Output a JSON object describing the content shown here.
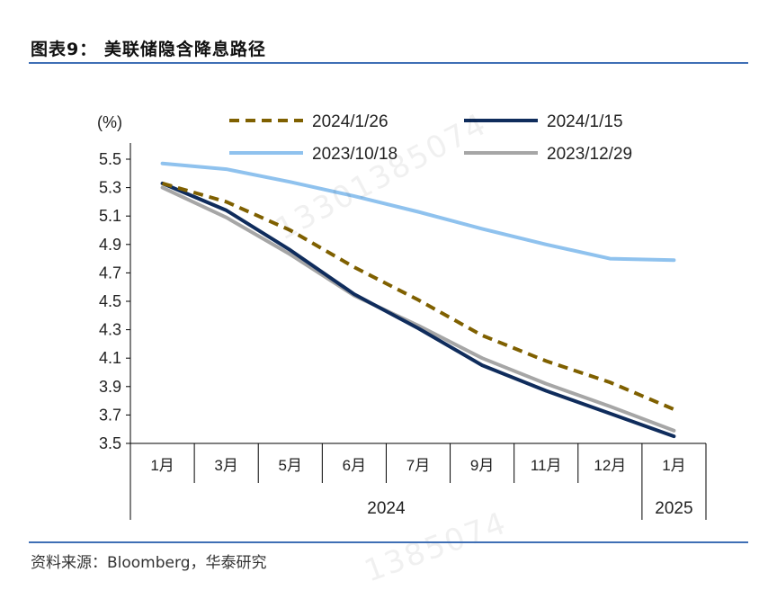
{
  "figure": {
    "title": "图表9：  美联储隐含降息路径",
    "source": "资料来源：Bloomberg，华泰研究",
    "watermark": "13301385074",
    "watermark_bottom": "1385074"
  },
  "chart_data": {
    "type": "line",
    "ylabel": "(%)",
    "ylim": [
      3.5,
      5.5
    ],
    "yticks": [
      "5.5",
      "5.3",
      "5.1",
      "4.9",
      "4.7",
      "4.5",
      "4.3",
      "4.1",
      "3.9",
      "3.7",
      "3.5"
    ],
    "categories": [
      "1月",
      "3月",
      "5月",
      "6月",
      "7月",
      "9月",
      "11月",
      "12月",
      "1月"
    ],
    "year_groups": [
      {
        "label": "2024",
        "span": 8
      },
      {
        "label": "2025",
        "span": 1
      }
    ],
    "legend_position": "top",
    "series": [
      {
        "name": "2024/1/26",
        "color": "#7f6000",
        "style": "dashed",
        "values": [
          5.33,
          5.2,
          5.0,
          4.74,
          4.51,
          4.26,
          4.08,
          3.93,
          3.74
        ]
      },
      {
        "name": "2024/1/15",
        "color": "#0f2c5c",
        "style": "solid",
        "values": [
          5.33,
          5.14,
          4.86,
          4.55,
          4.31,
          4.05,
          3.87,
          3.71,
          3.55
        ]
      },
      {
        "name": "2023/10/18",
        "color": "#8fc2ee",
        "style": "solid",
        "values": [
          5.47,
          5.43,
          5.34,
          5.24,
          5.13,
          5.01,
          4.9,
          4.8,
          4.79
        ]
      },
      {
        "name": "2023/12/29",
        "color": "#a6a6a6",
        "style": "solid",
        "values": [
          5.3,
          5.09,
          4.83,
          4.54,
          4.33,
          4.1,
          3.92,
          3.76,
          3.59
        ]
      }
    ]
  }
}
